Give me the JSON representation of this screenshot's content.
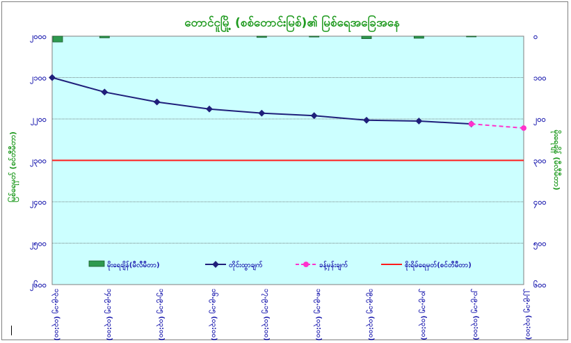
{
  "chart_data": {
    "type": "line",
    "title": "တောင်ငူမြို့ (စစ်တောင်းမြစ်)၏ မြစ်ရေအခြေအနေ",
    "ylabel_left": "မြစ်ရေမှတ် (စင်တီမီတာ)",
    "ylabel_right": "မိုးရေချိန် (မီလီမီတာ)",
    "left_axis": {
      "min": 2000,
      "max": 2600,
      "reversed": true,
      "ticks": [
        "၂၀၀၀",
        "၂၁၀၀",
        "၂၂၀၀",
        "၂၃၀၀",
        "၂၄၀၀",
        "၂၅၀၀",
        "၂၆၀၀"
      ]
    },
    "right_axis": {
      "min": 0,
      "max": 600,
      "reversed": false,
      "ticks": [
        "၀",
        "၁၀၀",
        "၂၀၀",
        "၃၀၀",
        "၄၀၀",
        "၅၀၀",
        "၆၀၀"
      ]
    },
    "categories": [
      "၁၃.၉.၁၅ (၀၃:၀၀)",
      "၁၄.၉.၁၅ (၀၃:၀၀)",
      "၁၅.၉.၁၅ (၀၃:၀၀)",
      "၁၆.၉.၁၅ (၀၃:၀၀)",
      "၁၇.၉.၁၅ (၀၃:၀၀)",
      "၁၈.၉.၁၅ (၀၃:၀၀)",
      "၁၉.၉.၁၅ (၀၃:၀၀)",
      "၂၀.၉.၁၅ (၀၃:၀၀)",
      "၂၁.၉.၁၅ (၀၃:၀၀)",
      "၂၂.၉.၁၅ (၀၃:၀၀)"
    ],
    "series": [
      {
        "name": "မိုးရေချိန်(မီလီမီတာ)",
        "kind": "bar",
        "color": "#2e9a4f",
        "values": [
          14,
          4,
          0,
          0,
          3,
          2,
          6,
          5,
          1,
          0
        ]
      },
      {
        "name": "တိုင်းထွာချက်",
        "kind": "line",
        "color": "#1f1f7a",
        "values": [
          2100,
          2135,
          2159,
          2176,
          2186,
          2192,
          2203,
          2205,
          2212,
          null
        ]
      },
      {
        "name": "ခန့်မှန်းချက်",
        "kind": "dashed-line",
        "color": "#ff33cc",
        "values": [
          null,
          null,
          null,
          null,
          null,
          null,
          null,
          null,
          2212,
          2222
        ]
      },
      {
        "name": "စိုးရိမ်ရေမှတ်(စင်တီမီတာ)",
        "kind": "reference",
        "color": "#ff1a1a",
        "value": 2300
      }
    ],
    "grid": true,
    "legend_position": "bottom",
    "plot_background": "#ccffff"
  }
}
